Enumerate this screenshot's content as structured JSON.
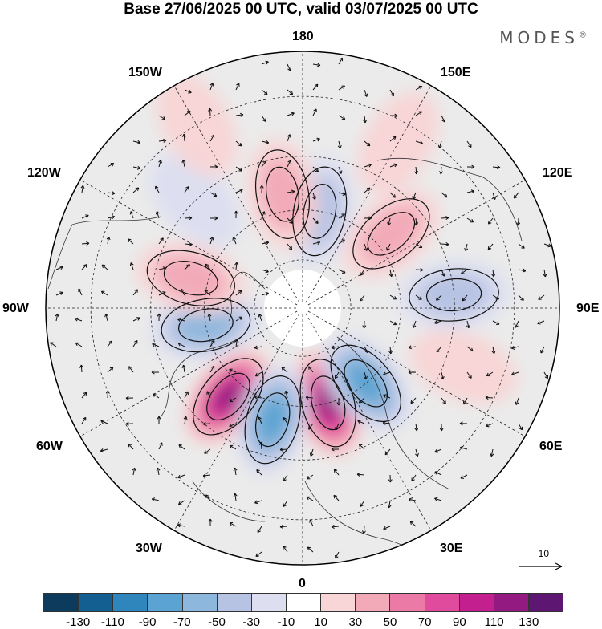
{
  "title": "Base 27/06/2025 00 UTC, valid 03/07/2025 00 UTC",
  "brand": "MODES",
  "brand_mark": "®",
  "longitude_labels": {
    "top": "180",
    "bottom": "0",
    "left": "90W",
    "right": "90E",
    "upper_left_1": "150W",
    "upper_left_2": "120W",
    "lower_left_1": "60W",
    "lower_left_2": "30W",
    "upper_right_1": "150E",
    "upper_right_2": "120E",
    "lower_right_1": "60E",
    "lower_right_2": "30E"
  },
  "vector_scale": {
    "label": "10",
    "icon": "arrow-right-icon"
  },
  "legend": {
    "colors": [
      "#0d3b5e",
      "#135f92",
      "#2f86bd",
      "#5aa3d2",
      "#8db7dd",
      "#b7c3e3",
      "#dddff0",
      "#ffffff",
      "#f8d5d6",
      "#f2aab8",
      "#ec7aa6",
      "#e04b9e",
      "#c41f8f",
      "#931a80",
      "#5e1673"
    ],
    "ticks": [
      "-130",
      "-110",
      "-90",
      "-70",
      "-50",
      "-30",
      "-10",
      "10",
      "30",
      "50",
      "70",
      "90",
      "110",
      "130"
    ]
  },
  "anomaly_cells": [
    {
      "sign": "pos",
      "level": 6,
      "lon": 15,
      "lat": 60
    },
    {
      "sign": "pos",
      "level": 6,
      "lon": -40,
      "lat": 55
    },
    {
      "sign": "neg",
      "level": 4,
      "lon": -15,
      "lat": 55
    },
    {
      "sign": "neg",
      "level": 4,
      "lon": 40,
      "lat": 60
    },
    {
      "sign": "neg",
      "level": 3,
      "lon": -80,
      "lat": 60
    },
    {
      "sign": "pos",
      "level": 2,
      "lon": -105,
      "lat": 55
    },
    {
      "sign": "neg",
      "level": 2,
      "lon": 95,
      "lat": 45
    },
    {
      "sign": "pos",
      "level": 2,
      "lon": 130,
      "lat": 55
    },
    {
      "sign": "neg",
      "level": 2,
      "lon": 170,
      "lat": 60
    },
    {
      "sign": "pos",
      "level": 2,
      "lon": -170,
      "lat": 55
    },
    {
      "sign": "pos",
      "level": 1,
      "lon": 70,
      "lat": 40
    },
    {
      "sign": "pos",
      "level": 1,
      "lon": 150,
      "lat": 35
    },
    {
      "sign": "neg",
      "level": 1,
      "lon": -135,
      "lat": 45
    },
    {
      "sign": "pos",
      "level": 1,
      "lon": -150,
      "lat": 30
    }
  ]
}
